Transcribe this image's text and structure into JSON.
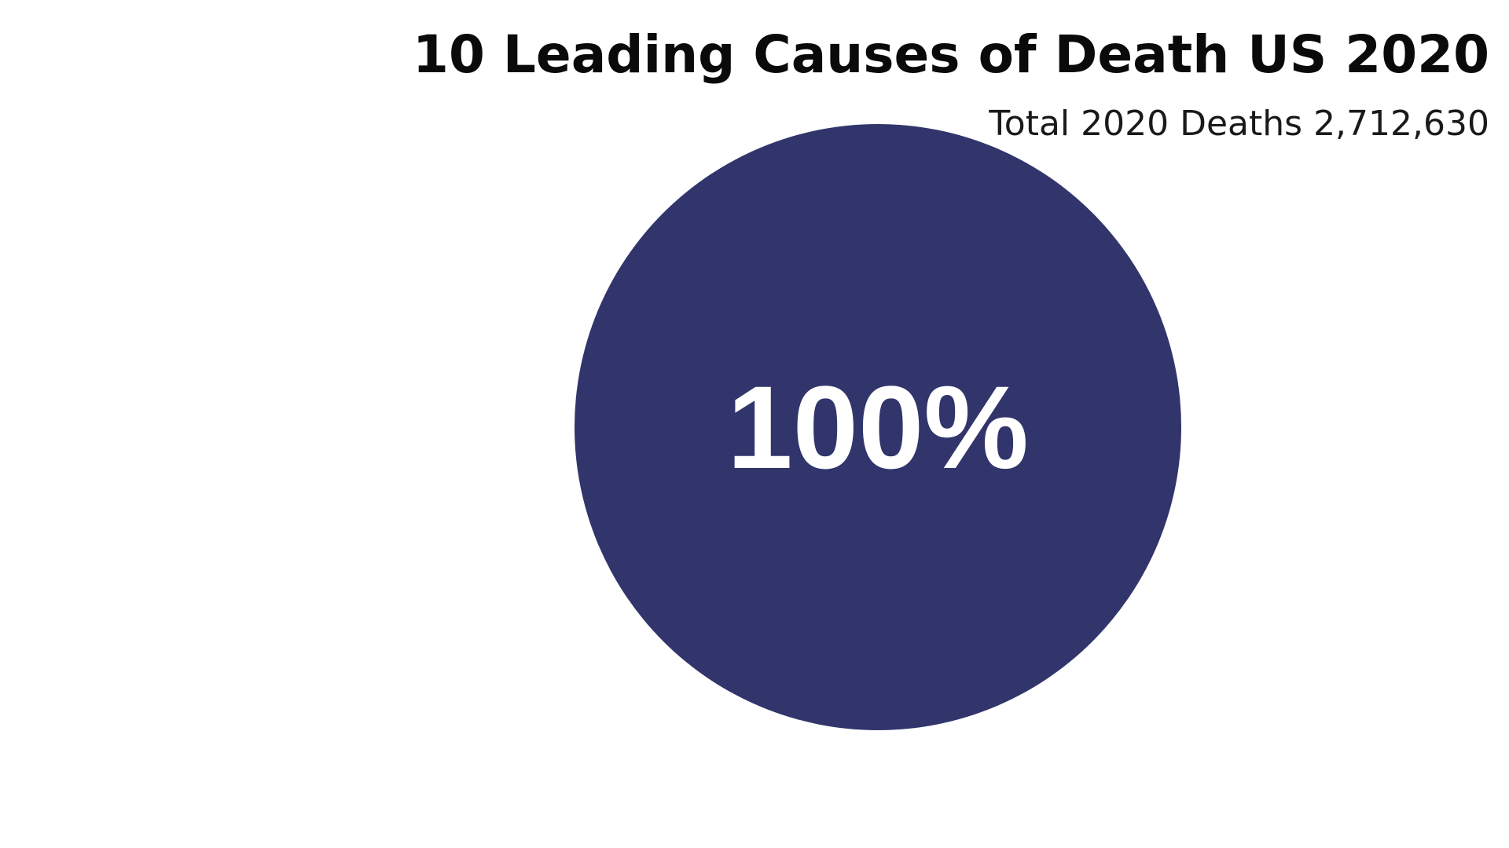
{
  "chart_data": {
    "type": "pie",
    "title": "10 Leading Causes of Death US 2020",
    "subtitle_label": "Total 2020 Deaths",
    "subtitle_value": "2,712,630",
    "slices": [
      {
        "value": 100,
        "label": "100%",
        "color": "#31356b"
      }
    ],
    "label_color": "#ffffff",
    "legend": "none"
  }
}
